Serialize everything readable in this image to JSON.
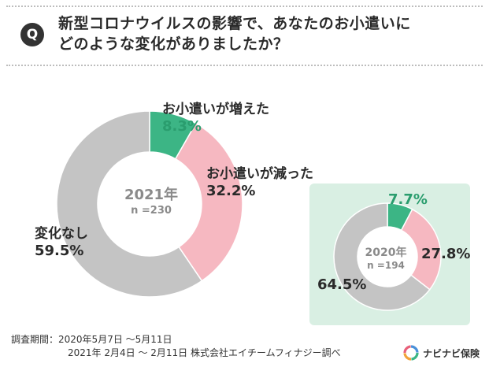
{
  "question": {
    "badge": "Q",
    "line1": "新型コロナウイルスの影響で、あなたのお小遣いに",
    "line2": "どのような変化がありましたか？"
  },
  "colors": {
    "increase": "#3cb585",
    "decrease": "#f6b8c1",
    "unchanged": "#c4c4c4",
    "panel_bg": "#d9efe3"
  },
  "chart_data": [
    {
      "type": "pie",
      "center_label": "2021年",
      "n_label": "n =230",
      "slices": [
        {
          "label": "お小遣いが増えた",
          "value": 8.3,
          "display": "8.3%"
        },
        {
          "label": "お小遣いが減った",
          "value": 32.2,
          "display": "32.2%"
        },
        {
          "label": "変化なし",
          "value": 59.5,
          "display": "59.5%"
        }
      ]
    },
    {
      "type": "pie",
      "center_label": "2020年",
      "n_label": "n =194",
      "slices": [
        {
          "label": "お小遣いが増えた",
          "value": 7.7,
          "display": "7.7%"
        },
        {
          "label": "お小遣いが減った",
          "value": 27.8,
          "display": "27.8%"
        },
        {
          "label": "変化なし",
          "value": 64.5,
          "display": "64.5%"
        }
      ]
    }
  ],
  "footer": {
    "period_label": "調査期間：",
    "period1": "2020年5月7日 ～5月11日",
    "period2": "2021年 2月4日 ～ 2月11日 株式会社エイチームフィナジー調べ"
  },
  "brand": {
    "name": "ナビナビ保険",
    "icon": "navinavi-logo-icon"
  }
}
